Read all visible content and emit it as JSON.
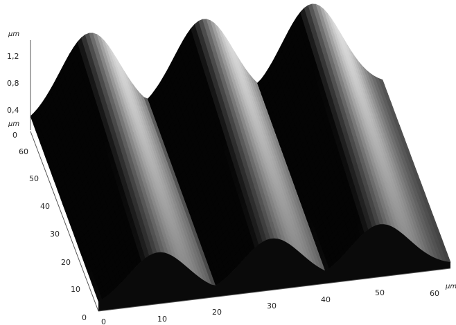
{
  "chart_data": {
    "type": "surface",
    "z_axis": {
      "unit": "µm",
      "ticks": [
        "0",
        "0,4",
        "0,8",
        "1,2"
      ],
      "range": [
        0,
        1.4
      ]
    },
    "y_axis": {
      "unit": "µm",
      "ticks": [
        "0",
        "10",
        "20",
        "30",
        "40",
        "50",
        "60"
      ],
      "range": [
        0,
        65
      ]
    },
    "x_axis": {
      "unit": "µm",
      "ticks": [
        "0",
        "10",
        "20",
        "30",
        "40",
        "50",
        "60"
      ],
      "range": [
        0,
        65
      ]
    },
    "ridges": [
      {
        "crest_x": 11,
        "peak_height": 1.42
      },
      {
        "crest_x": 32,
        "peak_height": 1.42
      },
      {
        "crest_x": 52,
        "peak_height": 1.45
      }
    ],
    "trough_height": 0.05,
    "colormap": "grayscale",
    "grid": false
  }
}
